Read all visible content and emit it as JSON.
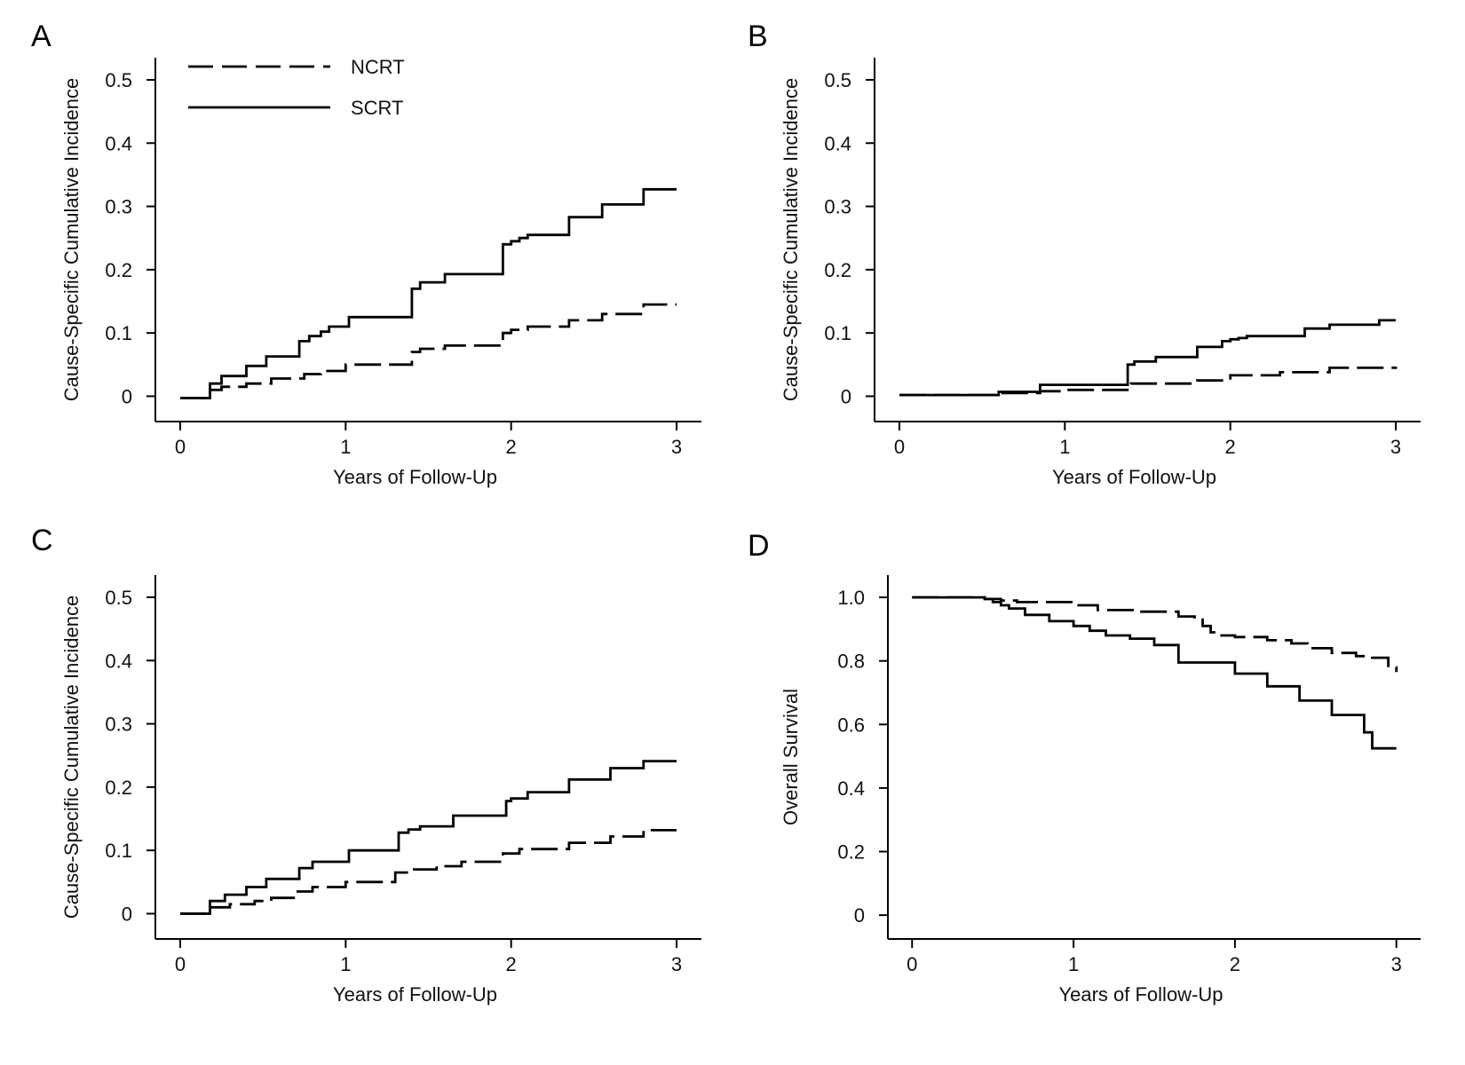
{
  "legend": {
    "items": [
      {
        "name": "NCRT",
        "dash": true
      },
      {
        "name": "SCRT",
        "dash": false
      }
    ]
  },
  "chart_data": [
    {
      "panel": "A",
      "type": "line",
      "xlabel": "Years of Follow-Up",
      "ylabel": "Cause-Specific Cumulative Incidence",
      "xlim": [
        -0.15,
        3.15
      ],
      "ylim": [
        -0.04,
        0.535
      ],
      "xticks": [
        0,
        1,
        2,
        3
      ],
      "xtick_labels": [
        "0",
        "1",
        "2",
        "3"
      ],
      "yticks": [
        0,
        0.1,
        0.2,
        0.3,
        0.4,
        0.5
      ],
      "ytick_labels": [
        "0",
        "0.1",
        "0.2",
        "0.3",
        "0.4",
        "0.5"
      ],
      "grid": false,
      "series": [
        {
          "name": "NCRT",
          "dashed": true,
          "x": [
            0,
            0.18,
            0.25,
            0.4,
            0.55,
            0.75,
            0.85,
            1.0,
            1.4,
            1.45,
            1.6,
            1.95,
            2.0,
            2.1,
            2.35,
            2.55,
            2.8,
            3.0
          ],
          "y": [
            -0.003,
            0.01,
            0.015,
            0.02,
            0.028,
            0.035,
            0.04,
            0.05,
            0.07,
            0.075,
            0.08,
            0.1,
            0.105,
            0.11,
            0.12,
            0.13,
            0.145,
            0.145
          ]
        },
        {
          "name": "SCRT",
          "dashed": false,
          "x": [
            0,
            0.18,
            0.25,
            0.4,
            0.52,
            0.72,
            0.78,
            0.85,
            0.9,
            1.02,
            1.4,
            1.45,
            1.6,
            1.95,
            2.0,
            2.05,
            2.1,
            2.15,
            2.35,
            2.55,
            2.8,
            3.0
          ],
          "y": [
            -0.003,
            0.02,
            0.032,
            0.048,
            0.063,
            0.087,
            0.095,
            0.102,
            0.11,
            0.125,
            0.17,
            0.18,
            0.193,
            0.24,
            0.245,
            0.25,
            0.255,
            0.255,
            0.283,
            0.303,
            0.327,
            0.327
          ]
        }
      ]
    },
    {
      "panel": "B",
      "type": "line",
      "xlabel": "Years of Follow-Up",
      "ylabel": "Cause-Specific Cumulative Incidence",
      "xlim": [
        -0.15,
        3.15
      ],
      "ylim": [
        -0.04,
        0.535
      ],
      "xticks": [
        0,
        1,
        2,
        3
      ],
      "xtick_labels": [
        "0",
        "1",
        "2",
        "3"
      ],
      "yticks": [
        0,
        0.1,
        0.2,
        0.3,
        0.4,
        0.5
      ],
      "ytick_labels": [
        "0",
        "0.1",
        "0.2",
        "0.3",
        "0.4",
        "0.5"
      ],
      "grid": false,
      "series": [
        {
          "name": "NCRT",
          "dashed": true,
          "x": [
            0,
            0.6,
            0.85,
            1.0,
            1.4,
            1.8,
            2.0,
            2.3,
            2.6,
            3.0
          ],
          "y": [
            0.002,
            0.005,
            0.008,
            0.01,
            0.02,
            0.025,
            0.033,
            0.038,
            0.045,
            0.047
          ]
        },
        {
          "name": "SCRT",
          "dashed": false,
          "x": [
            0,
            0.6,
            0.85,
            1.38,
            1.42,
            1.55,
            1.8,
            1.95,
            2.0,
            2.05,
            2.1,
            2.45,
            2.6,
            2.9,
            3.0
          ],
          "y": [
            0.002,
            0.007,
            0.018,
            0.05,
            0.055,
            0.062,
            0.078,
            0.087,
            0.09,
            0.092,
            0.095,
            0.107,
            0.113,
            0.12,
            0.12
          ]
        }
      ]
    },
    {
      "panel": "C",
      "type": "line",
      "xlabel": "Years of Follow-Up",
      "ylabel": "Cause-Specific Cumulative Incidence",
      "xlim": [
        -0.15,
        3.15
      ],
      "ylim": [
        -0.04,
        0.535
      ],
      "xticks": [
        0,
        1,
        2,
        3
      ],
      "xtick_labels": [
        "0",
        "1",
        "2",
        "3"
      ],
      "yticks": [
        0,
        0.1,
        0.2,
        0.3,
        0.4,
        0.5
      ],
      "ytick_labels": [
        "0",
        "0.1",
        "0.2",
        "0.3",
        "0.4",
        "0.5"
      ],
      "grid": false,
      "series": [
        {
          "name": "NCRT",
          "dashed": true,
          "x": [
            0,
            0.18,
            0.3,
            0.45,
            0.55,
            0.7,
            0.8,
            1.0,
            1.3,
            1.4,
            1.55,
            1.7,
            1.95,
            2.05,
            2.35,
            2.6,
            2.8,
            3.0
          ],
          "y": [
            0,
            0.01,
            0.015,
            0.02,
            0.025,
            0.035,
            0.042,
            0.05,
            0.065,
            0.07,
            0.075,
            0.082,
            0.095,
            0.102,
            0.112,
            0.122,
            0.132,
            0.132
          ]
        },
        {
          "name": "SCRT",
          "dashed": false,
          "x": [
            0,
            0.18,
            0.27,
            0.4,
            0.52,
            0.72,
            0.8,
            1.02,
            1.32,
            1.38,
            1.45,
            1.65,
            1.97,
            2.0,
            2.1,
            2.35,
            2.6,
            2.8,
            3.0
          ],
          "y": [
            0,
            0.02,
            0.03,
            0.042,
            0.055,
            0.072,
            0.082,
            0.1,
            0.128,
            0.133,
            0.138,
            0.155,
            0.178,
            0.182,
            0.192,
            0.212,
            0.23,
            0.241,
            0.241
          ]
        }
      ]
    },
    {
      "panel": "D",
      "type": "line",
      "xlabel": "Years of Follow-Up",
      "ylabel": "Overall Survival",
      "xlim": [
        -0.15,
        3.15
      ],
      "ylim": [
        -0.075,
        1.07
      ],
      "xticks": [
        0,
        1,
        2,
        3
      ],
      "xtick_labels": [
        "0",
        "1",
        "2",
        "3"
      ],
      "yticks": [
        0,
        0.2,
        0.4,
        0.6,
        0.8,
        1.0
      ],
      "ytick_labels": [
        "0",
        "0.2",
        "0.4",
        "0.6",
        "0.8",
        "1.0"
      ],
      "grid": false,
      "series": [
        {
          "name": "NCRT",
          "dashed": true,
          "x": [
            0,
            0.45,
            0.55,
            0.65,
            0.8,
            1.0,
            1.15,
            1.4,
            1.65,
            1.75,
            1.8,
            1.85,
            1.9,
            2.0,
            2.2,
            2.35,
            2.45,
            2.6,
            2.75,
            2.85,
            2.95,
            3.0
          ],
          "y": [
            1.0,
            0.995,
            0.99,
            0.985,
            0.985,
            0.975,
            0.96,
            0.955,
            0.94,
            0.93,
            0.91,
            0.89,
            0.88,
            0.875,
            0.865,
            0.855,
            0.84,
            0.825,
            0.815,
            0.81,
            0.78,
            0.765
          ]
        },
        {
          "name": "SCRT",
          "dashed": false,
          "x": [
            0,
            0.45,
            0.5,
            0.55,
            0.6,
            0.7,
            0.85,
            1.0,
            1.1,
            1.2,
            1.35,
            1.5,
            1.65,
            2.0,
            2.2,
            2.4,
            2.6,
            2.8,
            2.85,
            3.0
          ],
          "y": [
            1.0,
            0.995,
            0.985,
            0.975,
            0.965,
            0.945,
            0.925,
            0.91,
            0.895,
            0.88,
            0.87,
            0.85,
            0.795,
            0.76,
            0.72,
            0.675,
            0.63,
            0.575,
            0.525,
            0.525
          ]
        }
      ]
    }
  ]
}
